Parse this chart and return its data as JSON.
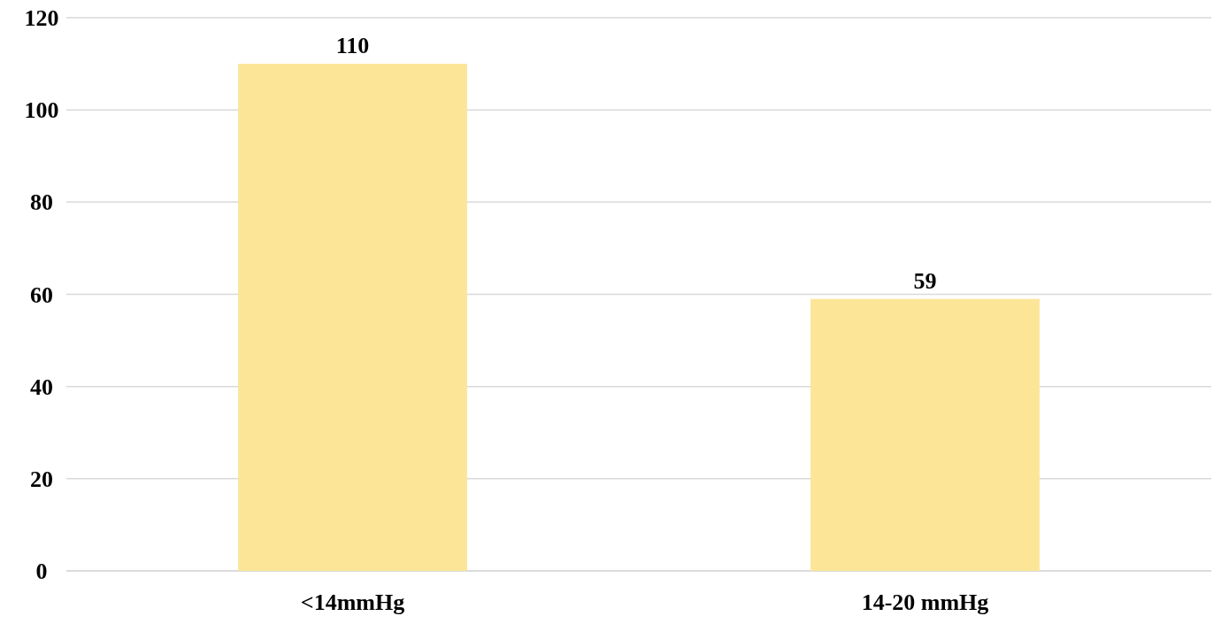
{
  "chart_data": {
    "type": "bar",
    "categories": [
      "<14mmHg",
      "14-20 mmHg"
    ],
    "values": [
      110,
      59
    ],
    "color": "#fde598",
    "ylim": [
      0,
      120
    ],
    "yticks": [
      0,
      20,
      40,
      60,
      80,
      100,
      120
    ],
    "grid": "y",
    "data_labels": true
  }
}
